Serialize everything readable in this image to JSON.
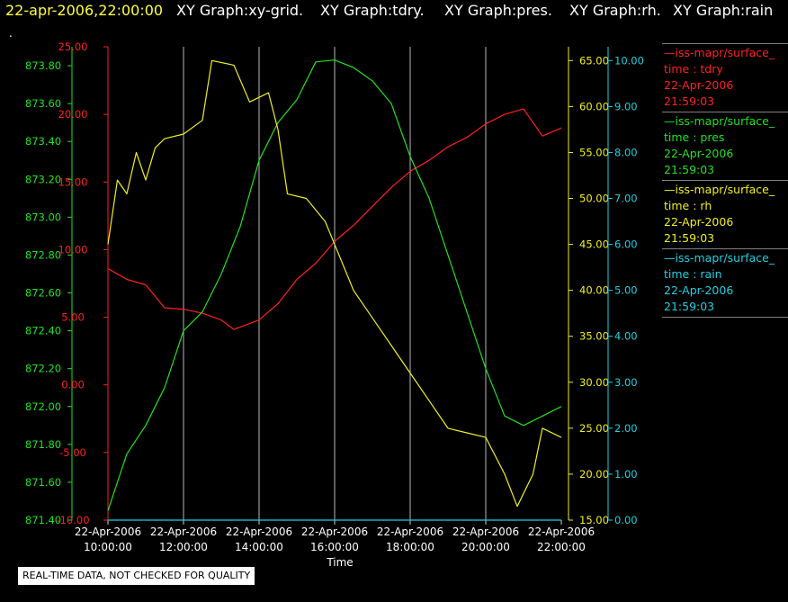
{
  "header": {
    "timestamp": "22-apr-2006,22:00:00",
    "graphs": [
      "XY Graph:xy-grid.",
      "XY Graph:tdry.",
      "XY Graph:pres.",
      "XY Graph:rh.",
      "XY Graph:rain"
    ]
  },
  "marker": ".",
  "disclaimer": "REAL-TIME DATA, NOT CHECKED FOR QUALITY",
  "legend": [
    {
      "source": "—iss-mapr/surface_",
      "var": "time : tdry",
      "date": "22-Apr-2006",
      "time": "21:59:03",
      "color": "#ff2020"
    },
    {
      "source": "—iss-mapr/surface_",
      "var": "time : pres",
      "date": "22-Apr-2006",
      "time": "21:59:03",
      "color": "#20e020"
    },
    {
      "source": "—iss-mapr/surface_",
      "var": "time : rh",
      "date": "22-Apr-2006",
      "time": "21:59:03",
      "color": "#f0f020"
    },
    {
      "source": "—iss-mapr/surface_",
      "var": "time : rain",
      "date": "22-Apr-2006",
      "time": "21:59:03",
      "color": "#20d0e0"
    }
  ],
  "chart_data": {
    "type": "line",
    "xlabel": "Time",
    "x_ticks": [
      {
        "d": "22-Apr-2006",
        "t": "10:00:00"
      },
      {
        "d": "22-Apr-2006",
        "t": "12:00:00"
      },
      {
        "d": "22-Apr-2006",
        "t": "14:00:00"
      },
      {
        "d": "22-Apr-2006",
        "t": "16:00:00"
      },
      {
        "d": "22-Apr-2006",
        "t": "18:00:00"
      },
      {
        "d": "22-Apr-2006",
        "t": "20:00:00"
      },
      {
        "d": "22-Apr-2006",
        "t": "22:00:00"
      }
    ],
    "xlim": [
      "22-Apr-2006 10:00:00",
      "22-Apr-2006 22:00:00"
    ],
    "grid": "vertical",
    "axes": {
      "pres": {
        "color": "#20e020",
        "min": 871.4,
        "max": 873.9,
        "ticks": [
          "871.40",
          "871.60",
          "871.80",
          "872.00",
          "872.20",
          "872.40",
          "872.60",
          "872.80",
          "873.00",
          "873.20",
          "873.40",
          "873.60",
          "873.80"
        ]
      },
      "tdry": {
        "color": "#ff2020",
        "min": -10,
        "max": 25,
        "ticks": [
          "-10.00",
          "-5.00",
          "0.00",
          "5.00",
          "10.00",
          "15.00",
          "20.00",
          "25.00"
        ]
      },
      "rh": {
        "color": "#f0f020",
        "min": 15,
        "max": 66.5,
        "ticks": [
          "15.00",
          "20.00",
          "25.00",
          "30.00",
          "35.00",
          "40.00",
          "45.00",
          "50.00",
          "55.00",
          "60.00",
          "65.00"
        ]
      },
      "rain": {
        "color": "#20d0e0",
        "min": 0,
        "max": 10.3,
        "ticks": [
          "0.00",
          "1.00",
          "2.00",
          "3.00",
          "4.00",
          "5.00",
          "6.00",
          "7.00",
          "8.00",
          "9.00",
          "10.00"
        ]
      }
    },
    "series": [
      {
        "name": "tdry",
        "axis": "tdry",
        "color": "#ff2020",
        "points": [
          [
            "22-Apr-2006 10:00",
            8.6
          ],
          [
            "22-Apr-2006 10:30",
            7.8
          ],
          [
            "22-Apr-2006 11:00",
            7.4
          ],
          [
            "22-Apr-2006 11:30",
            5.7
          ],
          [
            "22-Apr-2006 12:00",
            5.6
          ],
          [
            "22-Apr-2006 12:30",
            5.3
          ],
          [
            "22-Apr-2006 13:00",
            4.8
          ],
          [
            "22-Apr-2006 13:20",
            4.1
          ],
          [
            "22-Apr-2006 14:00",
            4.8
          ],
          [
            "22-Apr-2006 14:30",
            6.0
          ],
          [
            "22-Apr-2006 15:00",
            7.8
          ],
          [
            "22-Apr-2006 15:30",
            9.0
          ],
          [
            "22-Apr-2006 16:00",
            10.6
          ],
          [
            "22-Apr-2006 16:30",
            11.8
          ],
          [
            "22-Apr-2006 17:00",
            13.2
          ],
          [
            "22-Apr-2006 17:30",
            14.6
          ],
          [
            "22-Apr-2006 18:00",
            15.8
          ],
          [
            "22-Apr-2006 18:30",
            16.6
          ],
          [
            "22-Apr-2006 19:00",
            17.6
          ],
          [
            "22-Apr-2006 19:30",
            18.3
          ],
          [
            "22-Apr-2006 20:00",
            19.3
          ],
          [
            "22-Apr-2006 20:30",
            20.0
          ],
          [
            "22-Apr-2006 21:00",
            20.4
          ],
          [
            "22-Apr-2006 21:30",
            18.4
          ],
          [
            "22-Apr-2006 22:00",
            19.0
          ]
        ]
      },
      {
        "name": "pres",
        "axis": "pres",
        "color": "#20e020",
        "points": [
          [
            "22-Apr-2006 10:00",
            871.45
          ],
          [
            "22-Apr-2006 10:30",
            871.75
          ],
          [
            "22-Apr-2006 11:00",
            871.9
          ],
          [
            "22-Apr-2006 11:30",
            872.1
          ],
          [
            "22-Apr-2006 12:00",
            872.4
          ],
          [
            "22-Apr-2006 12:30",
            872.5
          ],
          [
            "22-Apr-2006 13:00",
            872.7
          ],
          [
            "22-Apr-2006 13:30",
            872.95
          ],
          [
            "22-Apr-2006 14:00",
            873.3
          ],
          [
            "22-Apr-2006 14:30",
            873.5
          ],
          [
            "22-Apr-2006 15:00",
            873.62
          ],
          [
            "22-Apr-2006 15:30",
            873.82
          ],
          [
            "22-Apr-2006 16:00",
            873.83
          ],
          [
            "22-Apr-2006 16:30",
            873.79
          ],
          [
            "22-Apr-2006 17:00",
            873.72
          ],
          [
            "22-Apr-2006 17:30",
            873.6
          ],
          [
            "22-Apr-2006 18:00",
            873.32
          ],
          [
            "22-Apr-2006 18:30",
            873.1
          ],
          [
            "22-Apr-2006 19:00",
            872.8
          ],
          [
            "22-Apr-2006 19:30",
            872.5
          ],
          [
            "22-Apr-2006 20:00",
            872.2
          ],
          [
            "22-Apr-2006 20:30",
            871.95
          ],
          [
            "22-Apr-2006 21:00",
            871.9
          ],
          [
            "22-Apr-2006 21:30",
            871.95
          ],
          [
            "22-Apr-2006 22:00",
            872.0
          ]
        ]
      },
      {
        "name": "rh",
        "axis": "rh",
        "color": "#f0f020",
        "points": [
          [
            "22-Apr-2006 10:00",
            45.0
          ],
          [
            "22-Apr-2006 10:15",
            52.0
          ],
          [
            "22-Apr-2006 10:30",
            50.5
          ],
          [
            "22-Apr-2006 10:45",
            55.0
          ],
          [
            "22-Apr-2006 11:00",
            52.0
          ],
          [
            "22-Apr-2006 11:15",
            55.5
          ],
          [
            "22-Apr-2006 11:30",
            56.5
          ],
          [
            "22-Apr-2006 12:00",
            57.0
          ],
          [
            "22-Apr-2006 12:30",
            58.5
          ],
          [
            "22-Apr-2006 12:45",
            65.0
          ],
          [
            "22-Apr-2006 13:20",
            64.5
          ],
          [
            "22-Apr-2006 13:45",
            60.5
          ],
          [
            "22-Apr-2006 14:15",
            61.5
          ],
          [
            "22-Apr-2006 14:30",
            57.5
          ],
          [
            "22-Apr-2006 14:45",
            50.5
          ],
          [
            "22-Apr-2006 15:15",
            50.0
          ],
          [
            "22-Apr-2006 15:45",
            47.5
          ],
          [
            "22-Apr-2006 16:00",
            45.0
          ],
          [
            "22-Apr-2006 16:30",
            40.0
          ],
          [
            "22-Apr-2006 17:00",
            37.0
          ],
          [
            "22-Apr-2006 17:30",
            34.0
          ],
          [
            "22-Apr-2006 18:00",
            31.0
          ],
          [
            "22-Apr-2006 18:30",
            28.0
          ],
          [
            "22-Apr-2006 19:00",
            25.0
          ],
          [
            "22-Apr-2006 19:30",
            24.5
          ],
          [
            "22-Apr-2006 20:00",
            24.0
          ],
          [
            "22-Apr-2006 20:30",
            20.0
          ],
          [
            "22-Apr-2006 20:50",
            16.5
          ],
          [
            "22-Apr-2006 21:15",
            20.0
          ],
          [
            "22-Apr-2006 21:30",
            25.0
          ],
          [
            "22-Apr-2006 22:00",
            24.0
          ]
        ]
      },
      {
        "name": "rain",
        "axis": "rain",
        "color": "#20d0e0",
        "points": [
          [
            "22-Apr-2006 10:00",
            0.0
          ],
          [
            "22-Apr-2006 22:00",
            0.0
          ]
        ]
      }
    ]
  }
}
